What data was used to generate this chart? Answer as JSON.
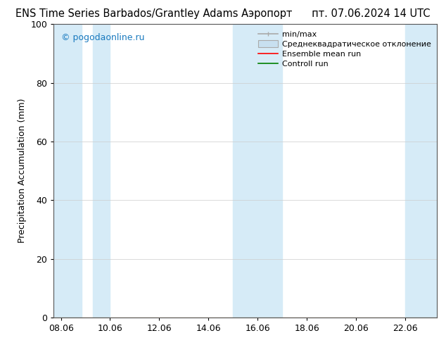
{
  "title_left": "ENS Time Series Barbados/Grantley Adams Аэропорт",
  "title_right": "пт. 07.06.2024 14 UTC",
  "ylabel": "Precipitation Accumulation (mm)",
  "watermark": "© pogodaonline.ru",
  "ylim": [
    0,
    100
  ],
  "yticks": [
    0,
    20,
    40,
    60,
    80,
    100
  ],
  "x_labels": [
    "08.06",
    "10.06",
    "12.06",
    "14.06",
    "16.06",
    "18.06",
    "20.06",
    "22.06"
  ],
  "x_values": [
    0,
    2,
    4,
    6,
    8,
    10,
    12,
    14
  ],
  "shade_color": "#d6ebf7",
  "background_color": "#ffffff",
  "grid_color": "#cccccc",
  "title_fontsize": 10.5,
  "label_fontsize": 9,
  "tick_fontsize": 9,
  "legend_fontsize": 8
}
